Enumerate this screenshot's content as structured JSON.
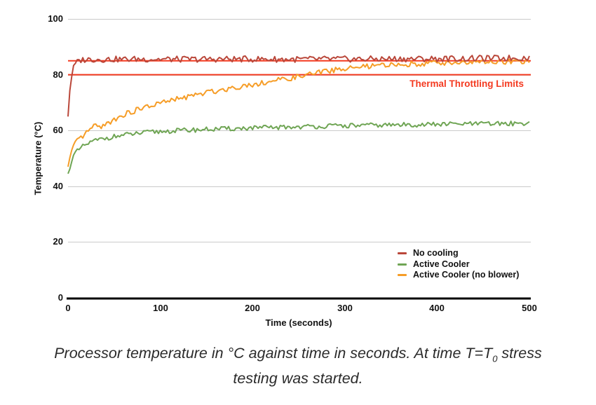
{
  "chart_data": {
    "type": "line",
    "title": "",
    "xlabel": "Time (seconds)",
    "ylabel": "Temperature (°C)",
    "xlim": [
      0,
      500
    ],
    "ylim": [
      0,
      100
    ],
    "x_ticks": [
      "0",
      "100",
      "200",
      "300",
      "400",
      "500"
    ],
    "y_ticks": [
      "0",
      "20",
      "40",
      "60",
      "80",
      "100"
    ],
    "grid": "horizontal-only",
    "grid_color": "#cacaca",
    "axis_color": "#000000",
    "legend_position": "inside-bottom-right",
    "annotation": "Thermal Throttling Limits",
    "annotation_color": "#f43a20",
    "thermal_limit_lines_c": [
      80,
      85
    ],
    "series": [
      {
        "name": "No cooling",
        "color": "#ba473a",
        "noise_amplitude": 1.1,
        "seed": 3,
        "keypoints": [
          [
            0,
            65
          ],
          [
            1,
            70
          ],
          [
            2,
            74.5
          ],
          [
            3,
            77.5
          ],
          [
            4,
            79.8
          ],
          [
            5,
            81.3
          ],
          [
            6,
            82.4
          ],
          [
            8,
            83.8
          ],
          [
            10,
            84.5
          ],
          [
            12,
            85.0
          ],
          [
            15,
            85.3
          ],
          [
            20,
            85.5
          ],
          [
            40,
            85.5
          ],
          [
            80,
            85.6
          ],
          [
            120,
            85.5
          ],
          [
            160,
            85.6
          ],
          [
            200,
            85.6
          ],
          [
            240,
            85.5
          ],
          [
            280,
            85.6
          ],
          [
            320,
            85.6
          ],
          [
            360,
            85.7
          ],
          [
            400,
            85.7
          ],
          [
            440,
            85.8
          ],
          [
            470,
            85.9
          ],
          [
            500,
            86.1
          ]
        ]
      },
      {
        "name": "Active Cooler",
        "color": "#6fa554",
        "noise_amplitude": 0.85,
        "seed": 11,
        "keypoints": [
          [
            0,
            44.5
          ],
          [
            2,
            47
          ],
          [
            4,
            49.3
          ],
          [
            6,
            50.8
          ],
          [
            8,
            51.8
          ],
          [
            10,
            52.5
          ],
          [
            13,
            53.4
          ],
          [
            16,
            54.2
          ],
          [
            20,
            55
          ],
          [
            25,
            55.8
          ],
          [
            30,
            56.4
          ],
          [
            40,
            57.2
          ],
          [
            50,
            57.8
          ],
          [
            60,
            58.3
          ],
          [
            75,
            58.9
          ],
          [
            90,
            59.4
          ],
          [
            110,
            59.8
          ],
          [
            130,
            60.1
          ],
          [
            150,
            60.4
          ],
          [
            175,
            60.6
          ],
          [
            200,
            60.9
          ],
          [
            230,
            61.1
          ],
          [
            260,
            61.4
          ],
          [
            300,
            61.7
          ],
          [
            340,
            61.9
          ],
          [
            380,
            62.1
          ],
          [
            420,
            62.3
          ],
          [
            460,
            62.4
          ],
          [
            500,
            62.6
          ]
        ]
      },
      {
        "name": "Active Cooler (no blower)",
        "color": "#f69d27",
        "noise_amplitude": 0.95,
        "seed": 17,
        "keypoints": [
          [
            0,
            47
          ],
          [
            2,
            50
          ],
          [
            4,
            52.3
          ],
          [
            6,
            54
          ],
          [
            8,
            55.2
          ],
          [
            10,
            56.1
          ],
          [
            13,
            57.1
          ],
          [
            16,
            57.9
          ],
          [
            20,
            59.1
          ],
          [
            24,
            60.6
          ],
          [
            28,
            61.3
          ],
          [
            33,
            61.5
          ],
          [
            38,
            61.7
          ],
          [
            44,
            62.6
          ],
          [
            50,
            64.0
          ],
          [
            57,
            65.2
          ],
          [
            65,
            66.2
          ],
          [
            75,
            67.4
          ],
          [
            85,
            68.4
          ],
          [
            100,
            69.8
          ],
          [
            115,
            71.0
          ],
          [
            130,
            72.1
          ],
          [
            145,
            73.2
          ],
          [
            160,
            74.2
          ],
          [
            175,
            75.1
          ],
          [
            190,
            76.0
          ],
          [
            205,
            76.8
          ],
          [
            220,
            77.6
          ],
          [
            235,
            78.4
          ],
          [
            250,
            79.3
          ],
          [
            262,
            80.1
          ],
          [
            275,
            81.0
          ],
          [
            290,
            81.8
          ],
          [
            305,
            82.3
          ],
          [
            320,
            82.8
          ],
          [
            340,
            83.3
          ],
          [
            360,
            83.7
          ],
          [
            380,
            84.0
          ],
          [
            400,
            84.2
          ],
          [
            425,
            84.4
          ],
          [
            450,
            84.5
          ],
          [
            475,
            84.6
          ],
          [
            500,
            84.6
          ]
        ]
      }
    ]
  },
  "caption": {
    "pre": "Processor temperature in °C against time in seconds. At time T=T",
    "sub": "0",
    "post": " stress",
    "line2": "testing was started."
  }
}
